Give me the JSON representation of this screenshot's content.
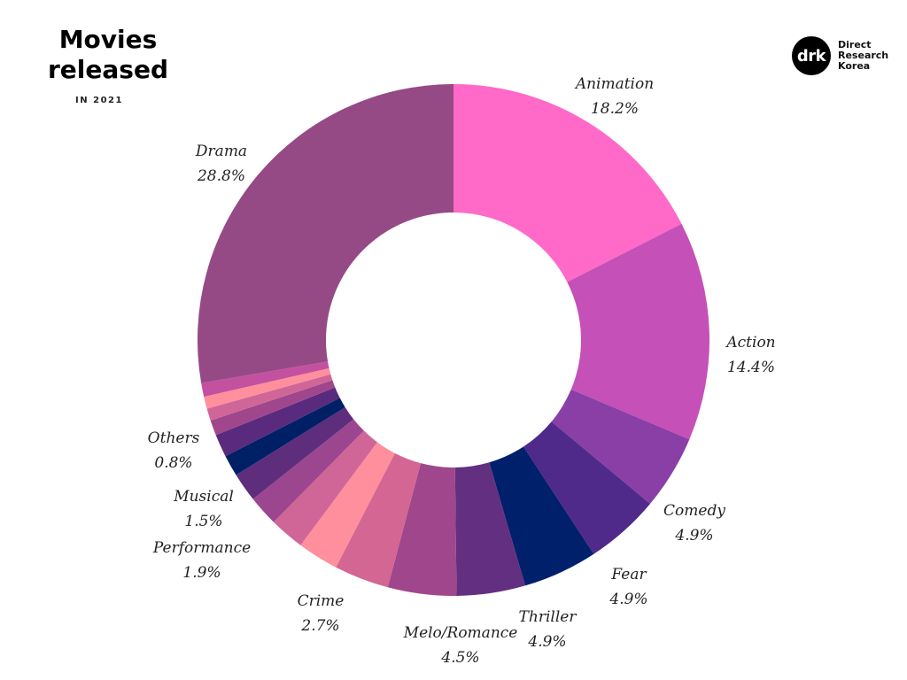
{
  "title_line1": "Movies",
  "title_line2": "released",
  "subtitle": "IN 2021",
  "logo": {
    "mark": "drk",
    "line1": "Direct",
    "line2": "Research",
    "line3": "Korea"
  },
  "chart_data": {
    "type": "pie",
    "title": "Movies released",
    "subtitle": "IN 2021",
    "donut": true,
    "slices": [
      {
        "label": "Animation",
        "value": 18.2,
        "display": "18.2%",
        "color": "#ff69c8"
      },
      {
        "label": "Action",
        "value": 14.4,
        "display": "14.4%",
        "color": "#c450b8"
      },
      {
        "label": "Comedy",
        "value": 4.9,
        "display": "4.9%",
        "color": "#8a3fa6"
      },
      {
        "label": "Fear",
        "value": 4.9,
        "display": "4.9%",
        "color": "#4f2a8a"
      },
      {
        "label": "Thriller",
        "value": 4.9,
        "display": "4.9%",
        "color": "#00206b"
      },
      {
        "label": "Melo/Romance",
        "value": 4.5,
        "display": "4.5%",
        "color": "#632f80"
      },
      {
        "label": "",
        "value": 4.5,
        "display": "",
        "color": "#a0468c"
      },
      {
        "label": "",
        "value": 3.6,
        "display": "",
        "color": "#d46694"
      },
      {
        "label": "Crime",
        "value": 2.7,
        "display": "2.7%",
        "color": "#ff8f9c"
      },
      {
        "label": "",
        "value": 2.3,
        "display": "",
        "color": "#d06698"
      },
      {
        "label": "",
        "value": 2.0,
        "display": "",
        "color": "#9c4690"
      },
      {
        "label": "Performance",
        "value": 1.9,
        "display": "1.9%",
        "color": "#5e2d7c"
      },
      {
        "label": "",
        "value": 1.4,
        "display": "",
        "color": "#002066"
      },
      {
        "label": "Musical",
        "value": 1.5,
        "display": "1.5%",
        "color": "#5a2a7e"
      },
      {
        "label": "",
        "value": 1.0,
        "display": "",
        "color": "#a0468c"
      },
      {
        "label": "",
        "value": 0.8,
        "display": "",
        "color": "#d06698"
      },
      {
        "label": "Others",
        "value": 0.8,
        "display": "0.8%",
        "color": "#ff8f9c"
      },
      {
        "label": "",
        "value": 0.9,
        "display": "",
        "color": "#c450a0"
      },
      {
        "label": "Drama",
        "value": 28.8,
        "display": "28.8%",
        "color": "#954a86"
      }
    ],
    "legend": "none"
  }
}
